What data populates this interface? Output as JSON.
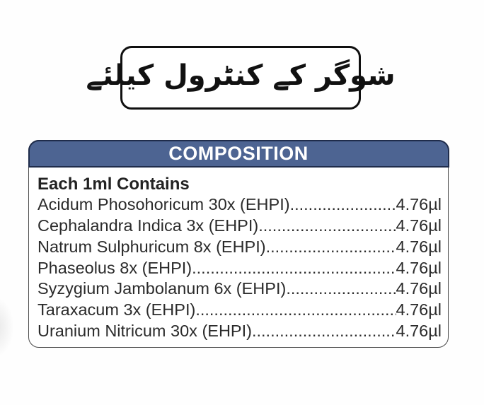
{
  "banner": {
    "urdu_text": "شوگر کے کنٹرول کیلئے"
  },
  "composition": {
    "header": "COMPOSITION",
    "subtitle": "Each 1ml Contains",
    "items": [
      {
        "name": "Acidum Phosohoricum 30x (EHPI)",
        "value": "4.76µl"
      },
      {
        "name": "Cephalandra Indica 3x (EHPI)",
        "value": "4.76µl"
      },
      {
        "name": "Natrum Sulphuricum 8x (EHPI)",
        "value": "4.76µl"
      },
      {
        "name": "Phaseolus 8x (EHPI)",
        "value": "4.76µl"
      },
      {
        "name": "Syzygium Jambolanum 6x (EHPI)",
        "value": "4.76µl"
      },
      {
        "name": "Taraxacum 3x (EHPI)",
        "value": "4.76µl"
      },
      {
        "name": "Uranium Nitricum 30x (EHPI)",
        "value": "4.76µl"
      }
    ],
    "colors": {
      "header_bg": "#4d6492",
      "header_border": "#1f2c4b",
      "header_text": "#ffffff",
      "body_text": "#2b2b2b"
    }
  }
}
